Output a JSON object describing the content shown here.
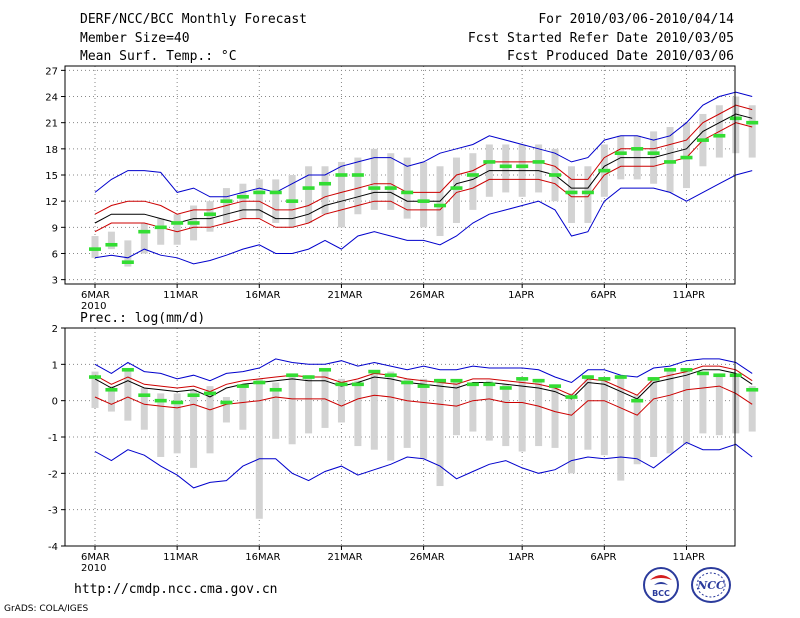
{
  "header": {
    "title": "DERF/NCC/BCC Monthly Forecast",
    "member": "Member Size=40",
    "variable": "Mean Surf. Temp.: °C",
    "for_range": "For 2010/03/06-2010/04/14",
    "fcst_started": "Fcst Started Refer Date 2010/03/05",
    "fcst_produced": "Fcst Produced Date 2010/03/06"
  },
  "footer": {
    "url": "http://cmdp.ncc.cma.gov.cn",
    "credit": "GrADS: COLA/IGES",
    "logo_left_text": "BCC",
    "logo_right_text": "NCC"
  },
  "colors": {
    "grid": "#888888",
    "box": "#d3d3d3",
    "mean": "#33dd33",
    "envelope": "#0000cc",
    "spread": "#cc0000",
    "median": "#000000"
  },
  "chart_data": [
    {
      "type": "box-plume",
      "title": "Mean Surf. Temp.: °C",
      "ylim": [
        2.5,
        27.5
      ],
      "yticks": [
        3,
        6,
        9,
        12,
        15,
        18,
        21,
        24,
        27
      ],
      "x_tick_labels": [
        "6MAR",
        "11MAR",
        "16MAR",
        "21MAR",
        "26MAR",
        "1APR",
        "6APR",
        "11APR"
      ],
      "x_tick_days": [
        1,
        6,
        11,
        16,
        21,
        27,
        32,
        37
      ],
      "year_label": "2010",
      "n_days": 40,
      "series": {
        "max": [
          13,
          14.5,
          15.5,
          15.5,
          15.3,
          13,
          13.5,
          12.5,
          12.5,
          13,
          13.5,
          13,
          14,
          15,
          15,
          16,
          16.5,
          17,
          17,
          16,
          16.5,
          17.5,
          18,
          18.5,
          19.5,
          19,
          18.5,
          18,
          17.5,
          16.5,
          17,
          19,
          19.5,
          19.5,
          19,
          19.5,
          21,
          23,
          24,
          24.5,
          24
        ],
        "plus_sd": [
          10.5,
          11.5,
          12,
          12,
          11.5,
          10.5,
          11,
          11,
          11.5,
          12,
          12,
          11,
          11,
          11.5,
          12.5,
          13,
          13.5,
          14,
          14,
          13,
          13,
          13,
          15,
          15.5,
          16.5,
          16.5,
          16.5,
          16.5,
          16,
          14.5,
          14.5,
          17,
          18,
          18,
          18,
          18.5,
          19,
          21,
          22,
          23,
          22.5
        ],
        "median": [
          9.5,
          10.5,
          10.5,
          10.5,
          10,
          9.5,
          10,
          10,
          10.5,
          11,
          11,
          10,
          10,
          10.5,
          11.5,
          12,
          12.5,
          13,
          13,
          12,
          12,
          12,
          14,
          14.5,
          15.5,
          15.5,
          15.5,
          15.5,
          15,
          13.5,
          13.5,
          16,
          17,
          17,
          17,
          17.5,
          18,
          20,
          21,
          22,
          21.5
        ],
        "minus_sd": [
          8.5,
          9.5,
          9.5,
          9.5,
          9,
          8.5,
          9,
          9,
          9.5,
          10,
          10,
          9,
          9,
          9.5,
          10.5,
          11,
          11.5,
          12,
          12,
          11,
          11,
          11,
          13,
          13.5,
          14.5,
          14.5,
          14.5,
          14.5,
          14,
          12.5,
          12.5,
          15,
          16,
          16,
          16,
          16.5,
          17,
          19,
          20,
          21,
          20.5
        ],
        "min": [
          5.5,
          5.8,
          5.5,
          6.5,
          5.8,
          5.5,
          4.8,
          5.2,
          5.8,
          6.5,
          7,
          6,
          6,
          6.5,
          7.5,
          6.5,
          8,
          8.5,
          8,
          7.5,
          7.5,
          7,
          8,
          9.5,
          10.5,
          11,
          11.5,
          12,
          11,
          8,
          8.5,
          12,
          13.5,
          13.5,
          13.5,
          13,
          12,
          13,
          14,
          15,
          15.5
        ],
        "ens_mean": [
          6.5,
          7,
          5,
          8.5,
          9,
          9.5,
          9.5,
          10.5,
          12,
          12.5,
          13,
          13,
          12,
          13.5,
          14,
          15,
          15,
          13.5,
          13.5,
          13,
          12,
          11.5,
          13.5,
          15,
          16.5,
          16,
          16,
          16.5,
          15,
          13,
          13,
          15.5,
          17.5,
          18,
          17.5,
          16.5,
          17,
          19,
          19.5,
          21.5,
          21
        ],
        "box_hi": [
          8,
          8.5,
          7.5,
          9.5,
          10,
          10.5,
          11.5,
          12,
          13.5,
          14,
          14.5,
          14.5,
          15,
          16,
          16,
          16.5,
          17,
          18,
          17.5,
          17,
          16.5,
          16,
          17,
          17.5,
          18.5,
          18.5,
          18.5,
          18.5,
          18,
          16,
          16,
          18.5,
          19.5,
          19.5,
          20,
          20.5,
          21,
          22,
          23,
          24,
          23
        ],
        "box_lo": [
          5.5,
          6.5,
          4.5,
          6,
          7,
          7,
          7.5,
          8.5,
          9.5,
          10,
          10,
          9.5,
          9,
          9.5,
          10.5,
          9,
          10.5,
          11,
          11,
          10,
          9,
          8,
          9.5,
          11,
          12.5,
          13,
          12.5,
          13,
          12,
          9.5,
          9.5,
          12.5,
          14.5,
          14.5,
          14,
          13,
          13.5,
          16,
          17,
          17.5,
          17
        ]
      }
    },
    {
      "type": "box-plume",
      "title": "Prec.: log(mm/d)",
      "ylim": [
        -4,
        2
      ],
      "yticks": [
        -4,
        -3,
        -2,
        -1,
        0,
        1,
        2
      ],
      "x_tick_labels": [
        "6MAR",
        "11MAR",
        "16MAR",
        "21MAR",
        "26MAR",
        "1APR",
        "6APR",
        "11APR"
      ],
      "x_tick_days": [
        1,
        6,
        11,
        16,
        21,
        27,
        32,
        37
      ],
      "year_label": "2010",
      "n_days": 40,
      "series": {
        "max": [
          1,
          0.75,
          1.05,
          0.8,
          0.75,
          0.6,
          0.7,
          0.55,
          0.75,
          0.8,
          0.9,
          1.15,
          1.05,
          1,
          1,
          1.1,
          0.95,
          1.05,
          0.95,
          0.85,
          0.95,
          0.85,
          0.85,
          0.95,
          0.9,
          0.9,
          0.9,
          0.85,
          0.65,
          0.5,
          0.85,
          0.85,
          0.7,
          0.65,
          0.9,
          0.95,
          1.1,
          1.15,
          1.15,
          1.05,
          0.75
        ],
        "plus_sd": [
          0.7,
          0.45,
          0.65,
          0.45,
          0.4,
          0.35,
          0.4,
          0.25,
          0.45,
          0.55,
          0.6,
          0.65,
          0.7,
          0.65,
          0.65,
          0.5,
          0.6,
          0.75,
          0.7,
          0.6,
          0.55,
          0.5,
          0.45,
          0.6,
          0.6,
          0.55,
          0.5,
          0.45,
          0.35,
          0.15,
          0.6,
          0.55,
          0.35,
          0.15,
          0.6,
          0.7,
          0.8,
          0.95,
          0.95,
          0.85,
          0.55
        ],
        "median": [
          0.6,
          0.35,
          0.55,
          0.35,
          0.3,
          0.25,
          0.3,
          0.1,
          0.35,
          0.45,
          0.5,
          0.55,
          0.6,
          0.55,
          0.55,
          0.4,
          0.5,
          0.65,
          0.6,
          0.5,
          0.45,
          0.4,
          0.35,
          0.5,
          0.5,
          0.45,
          0.4,
          0.35,
          0.25,
          0.05,
          0.5,
          0.45,
          0.25,
          0.05,
          0.5,
          0.6,
          0.7,
          0.85,
          0.85,
          0.75,
          0.45
        ],
        "minus_sd": [
          0.1,
          -0.1,
          0.1,
          -0.1,
          -0.15,
          -0.2,
          -0.1,
          -0.25,
          -0.1,
          -0.05,
          0,
          0.1,
          0.05,
          0.05,
          0.05,
          -0.15,
          0.05,
          0.15,
          0.1,
          0,
          -0.05,
          -0.1,
          -0.15,
          0,
          0.05,
          -0.05,
          -0.05,
          -0.15,
          -0.3,
          -0.4,
          0,
          0,
          -0.2,
          -0.4,
          0.05,
          0.15,
          0.3,
          0.35,
          0.4,
          0.2,
          -0.1
        ],
        "min": [
          -1.4,
          -1.65,
          -1.35,
          -1.5,
          -1.8,
          -2.05,
          -2.4,
          -2.25,
          -2.2,
          -1.8,
          -1.6,
          -1.6,
          -2,
          -2.2,
          -1.95,
          -1.8,
          -2.05,
          -1.9,
          -1.75,
          -1.55,
          -1.6,
          -1.8,
          -2.15,
          -1.95,
          -1.75,
          -1.65,
          -1.85,
          -2,
          -1.9,
          -1.65,
          -1.55,
          -1.6,
          -1.55,
          -1.6,
          -1.85,
          -1.5,
          -1.15,
          -1.35,
          -1.35,
          -1.2,
          -1.55
        ],
        "ens_mean": [
          0.65,
          0.3,
          0.85,
          0.15,
          0,
          -0.05,
          0.15,
          0.2,
          -0.05,
          0.4,
          0.5,
          0.3,
          0.7,
          0.65,
          0.85,
          0.45,
          0.45,
          0.8,
          0.7,
          0.5,
          0.4,
          0.55,
          0.55,
          0.45,
          0.45,
          0.35,
          0.6,
          0.55,
          0.4,
          0.1,
          0.65,
          0.6,
          0.65,
          0,
          0.6,
          0.85,
          0.85,
          0.75,
          0.7,
          0.7,
          0.3
        ],
        "box_hi": [
          0.8,
          0.4,
          0.9,
          0.35,
          0.2,
          0.2,
          0.3,
          0.4,
          0.1,
          0.45,
          0.6,
          0.5,
          0.75,
          0.7,
          0.8,
          0.6,
          0.55,
          0.75,
          0.8,
          0.6,
          0.6,
          0.6,
          0.55,
          0.5,
          0.55,
          0.45,
          0.65,
          0.6,
          0.45,
          0.2,
          0.7,
          0.65,
          0.65,
          0.15,
          0.65,
          0.9,
          0.9,
          0.8,
          0.75,
          0.75,
          0.4
        ],
        "box_lo": [
          -0.2,
          -0.3,
          -0.55,
          -0.8,
          -1.55,
          -1.45,
          -1.85,
          -1.45,
          -0.6,
          -0.8,
          -3.25,
          -1.05,
          -1.2,
          -0.9,
          -0.75,
          -0.6,
          -1.25,
          -1.35,
          -1.65,
          -1.3,
          -1.6,
          -2.35,
          -0.95,
          -0.85,
          -1.1,
          -1.25,
          -1.4,
          -1.25,
          -1.3,
          -2,
          -1.35,
          -1.5,
          -2.2,
          -1.75,
          -1.55,
          -1.45,
          -1.2,
          -0.9,
          -0.95,
          -0.9,
          -0.85
        ]
      }
    }
  ]
}
